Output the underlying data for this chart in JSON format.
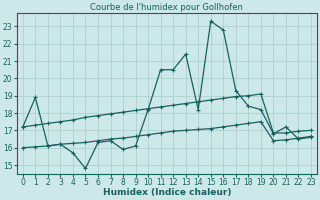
{
  "title": "Courbe de l'humidex pour Gollhofen",
  "xlabel": "Humidex (Indice chaleur)",
  "xlim": [
    -0.5,
    23.5
  ],
  "ylim": [
    14.5,
    23.8
  ],
  "y_ticks": [
    15,
    16,
    17,
    18,
    19,
    20,
    21,
    22,
    23
  ],
  "x_ticks": [
    0,
    1,
    2,
    3,
    4,
    5,
    6,
    7,
    8,
    9,
    10,
    11,
    12,
    13,
    14,
    15,
    16,
    17,
    18,
    19,
    20,
    21,
    22,
    23
  ],
  "bg_color": "#cce8e8",
  "grid_color": "#aacccc",
  "line_color": "#1a6060",
  "line1_y": [
    17.2,
    18.9,
    16.1,
    16.2,
    15.7,
    14.8,
    16.3,
    16.4,
    15.9,
    16.1,
    18.2,
    20.5,
    20.5,
    21.4,
    18.2,
    23.3,
    22.8,
    19.3,
    18.4,
    18.2,
    16.8,
    17.2,
    16.5,
    16.6
  ],
  "line2_y": [
    17.2,
    17.3,
    17.4,
    17.5,
    17.6,
    17.75,
    17.85,
    17.95,
    18.05,
    18.15,
    18.25,
    18.35,
    18.45,
    18.55,
    18.65,
    18.75,
    18.85,
    18.95,
    19.0,
    19.1,
    16.85,
    16.85,
    16.95,
    17.0
  ],
  "line3_y": [
    16.0,
    16.05,
    16.1,
    16.2,
    16.25,
    16.3,
    16.4,
    16.5,
    16.55,
    16.65,
    16.75,
    16.85,
    16.95,
    17.0,
    17.05,
    17.1,
    17.2,
    17.3,
    17.4,
    17.5,
    16.4,
    16.45,
    16.55,
    16.65
  ]
}
